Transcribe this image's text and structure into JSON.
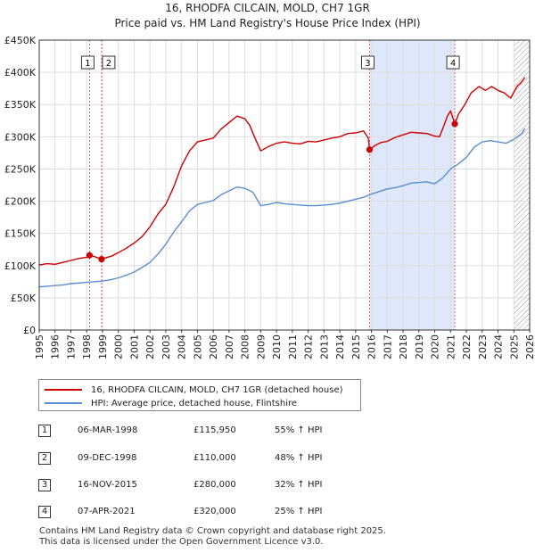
{
  "title": "16, RHODFA CILCAIN, MOLD, CH7 1GR",
  "subtitle": "Price paid vs. HM Land Registry's House Price Index (HPI)",
  "colors": {
    "property": "#cc0000",
    "hpi": "#5b8ed1",
    "shade": "#dfe8fb",
    "grid": "#dddddd"
  },
  "chart_data": {
    "type": "line",
    "title": "Price paid vs. HM Land Registry's House Price Index (HPI)",
    "xlim": [
      1995,
      2026
    ],
    "ylim": [
      0,
      450000
    ],
    "y_ticks": [
      0,
      50000,
      100000,
      150000,
      200000,
      250000,
      300000,
      350000,
      400000,
      450000
    ],
    "y_tick_labels": [
      "£0",
      "£50K",
      "£100K",
      "£150K",
      "£200K",
      "£250K",
      "£300K",
      "£350K",
      "£400K",
      "£450K"
    ],
    "x_tick_labels": [
      "1995",
      "1996",
      "1997",
      "1998",
      "1999",
      "2000",
      "2001",
      "2002",
      "2003",
      "2004",
      "2005",
      "2006",
      "2007",
      "2008",
      "2009",
      "2010",
      "2011",
      "2012",
      "2013",
      "2014",
      "2015",
      "2016",
      "2017",
      "2018",
      "2019",
      "2020",
      "2021",
      "2022",
      "2023",
      "2024",
      "2025",
      "2026"
    ],
    "shaded_ranges": [
      [
        2015.87,
        2021.27
      ]
    ],
    "hatched_from": 2025.0,
    "series": [
      {
        "name": "16, RHODFA CILCAIN, MOLD, CH7 1GR (detached house)",
        "color": "#cc0000",
        "x": [
          1995.0,
          1995.5,
          1996.0,
          1996.5,
          1997.0,
          1997.5,
          1998.0,
          1998.18,
          1998.5,
          1998.94,
          1999.2,
          1999.6,
          2000.0,
          2000.5,
          2001.0,
          2001.5,
          2002.0,
          2002.5,
          2003.0,
          2003.5,
          2004.0,
          2004.5,
          2005.0,
          2005.5,
          2006.0,
          2006.5,
          2007.0,
          2007.5,
          2008.0,
          2008.3,
          2008.6,
          2009.0,
          2009.5,
          2010.0,
          2010.5,
          2011.0,
          2011.5,
          2012.0,
          2012.5,
          2013.0,
          2013.5,
          2014.0,
          2014.5,
          2015.0,
          2015.5,
          2015.8,
          2015.88,
          2016.2,
          2016.6,
          2017.0,
          2017.5,
          2018.0,
          2018.5,
          2019.0,
          2019.5,
          2020.0,
          2020.3,
          2020.5,
          2020.8,
          2021.0,
          2021.27,
          2021.5,
          2021.9,
          2022.3,
          2022.8,
          2023.2,
          2023.6,
          2024.0,
          2024.4,
          2024.8,
          2025.2,
          2025.5,
          2025.7
        ],
        "y": [
          101000,
          103000,
          102000,
          105000,
          108000,
          111000,
          113000,
          115950,
          114000,
          110000,
          112000,
          115000,
          120000,
          127000,
          135000,
          145000,
          160000,
          180000,
          195000,
          222000,
          255000,
          278000,
          292000,
          295000,
          298000,
          312000,
          322000,
          332000,
          328000,
          318000,
          300000,
          278000,
          285000,
          290000,
          292000,
          290000,
          289000,
          293000,
          292000,
          295000,
          298000,
          300000,
          305000,
          306000,
          309000,
          298000,
          280000,
          286000,
          291000,
          293000,
          299000,
          303000,
          307000,
          306000,
          305000,
          301000,
          300000,
          312000,
          332000,
          340000,
          320000,
          335000,
          350000,
          368000,
          378000,
          372000,
          378000,
          372000,
          368000,
          360000,
          378000,
          385000,
          392000
        ]
      },
      {
        "name": "HPI: Average price, detached house, Flintshire",
        "color": "#5b8ed1",
        "x": [
          1995.0,
          1995.5,
          1996.0,
          1996.5,
          1997.0,
          1997.5,
          1998.0,
          1998.5,
          1999.0,
          1999.5,
          2000.0,
          2000.5,
          2001.0,
          2001.5,
          2002.0,
          2002.5,
          2003.0,
          2003.5,
          2004.0,
          2004.5,
          2005.0,
          2005.5,
          2006.0,
          2006.5,
          2007.0,
          2007.5,
          2008.0,
          2008.5,
          2009.0,
          2009.5,
          2010.0,
          2010.5,
          2011.0,
          2011.5,
          2012.0,
          2012.5,
          2013.0,
          2013.5,
          2014.0,
          2014.5,
          2015.0,
          2015.5,
          2016.0,
          2016.5,
          2017.0,
          2017.5,
          2018.0,
          2018.5,
          2019.0,
          2019.5,
          2020.0,
          2020.5,
          2021.0,
          2021.5,
          2022.0,
          2022.5,
          2023.0,
          2023.5,
          2024.0,
          2024.5,
          2025.0,
          2025.5,
          2025.7
        ],
        "y": [
          67000,
          68000,
          69000,
          70000,
          72000,
          73000,
          74000,
          75000,
          76000,
          78000,
          81000,
          85000,
          90000,
          97000,
          105000,
          118000,
          133000,
          152000,
          168000,
          185000,
          195000,
          198000,
          201000,
          210000,
          216000,
          222000,
          220000,
          214000,
          193000,
          195000,
          198000,
          196000,
          195000,
          194000,
          193000,
          193000,
          194000,
          195000,
          197000,
          200000,
          203000,
          206000,
          211000,
          215000,
          219000,
          221000,
          224000,
          228000,
          229000,
          230000,
          227000,
          236000,
          250000,
          258000,
          268000,
          284000,
          292000,
          294000,
          292000,
          290000,
          296000,
          305000,
          313000
        ]
      }
    ],
    "sales": [
      {
        "label": "1",
        "x": 1998.18,
        "y": 115950
      },
      {
        "label": "2",
        "x": 1998.94,
        "y": 110000
      },
      {
        "label": "3",
        "x": 2015.88,
        "y": 280000
      },
      {
        "label": "4",
        "x": 2021.27,
        "y": 320000
      }
    ]
  },
  "legend": {
    "property_label": "16, RHODFA CILCAIN, MOLD, CH7 1GR (detached house)",
    "hpi_label": "HPI: Average price, detached house, Flintshire"
  },
  "transactions": [
    {
      "num": "1",
      "date": "06-MAR-1998",
      "price": "£115,950",
      "hpi": "55% ↑ HPI"
    },
    {
      "num": "2",
      "date": "09-DEC-1998",
      "price": "£110,000",
      "hpi": "48% ↑ HPI"
    },
    {
      "num": "3",
      "date": "16-NOV-2015",
      "price": "£280,000",
      "hpi": "32% ↑ HPI"
    },
    {
      "num": "4",
      "date": "07-APR-2021",
      "price": "£320,000",
      "hpi": "25% ↑ HPI"
    }
  ],
  "footer": {
    "line1": "Contains HM Land Registry data © Crown copyright and database right 2025.",
    "line2": "This data is licensed under the Open Government Licence v3.0."
  }
}
